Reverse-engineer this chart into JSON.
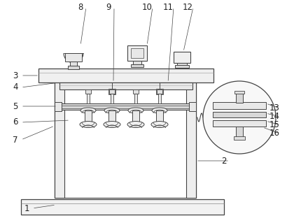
{
  "background_color": "#ffffff",
  "line_color": "#444444",
  "fig_width": 4.2,
  "fig_height": 3.19,
  "dpi": 100
}
